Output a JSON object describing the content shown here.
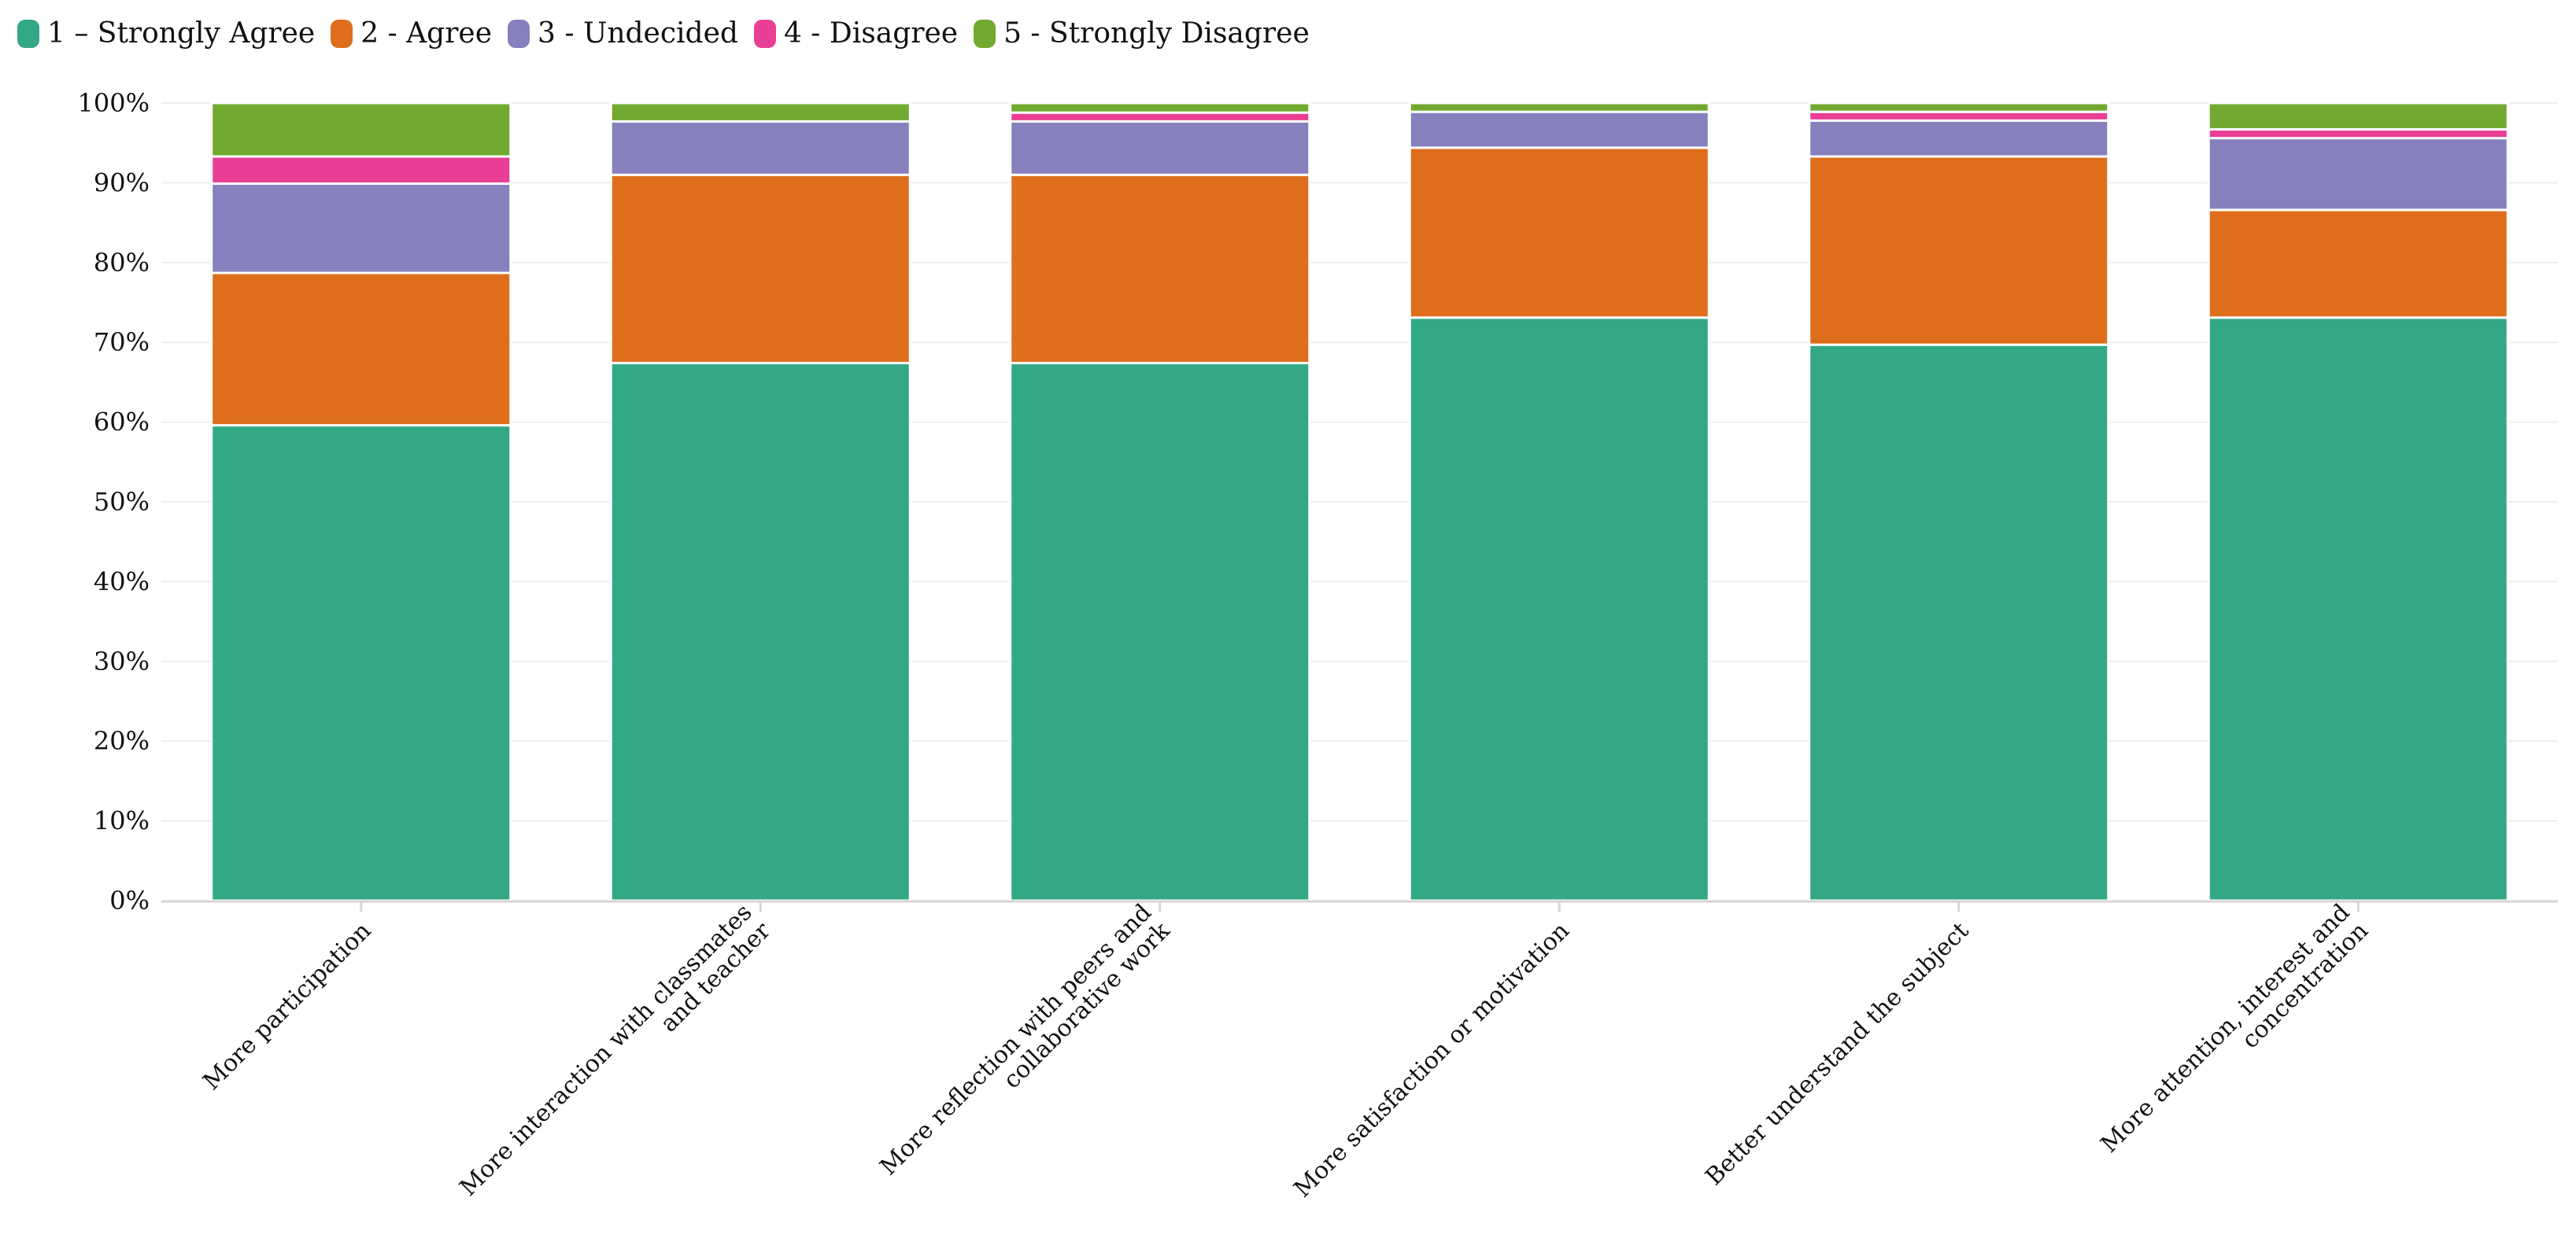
{
  "chart_data": {
    "type": "bar",
    "stacked": true,
    "percent": true,
    "title": "",
    "xlabel": "",
    "ylabel": "",
    "ylim": [
      0,
      100
    ],
    "yticks": [
      "0%",
      "10%",
      "20%",
      "30%",
      "40%",
      "50%",
      "60%",
      "70%",
      "80%",
      "90%",
      "100%"
    ],
    "legend_position": "top-left",
    "categories": [
      [
        "More participation"
      ],
      [
        "More interaction with classmates",
        "and teacher"
      ],
      [
        "More reflection with peers and",
        "collaborative work"
      ],
      [
        "More satisfaction or motivation"
      ],
      [
        "Better understand the subject"
      ],
      [
        "More attention, interest and",
        "concentration"
      ]
    ],
    "series": [
      {
        "name": "1 – Strongly Agree",
        "color": "#33a886",
        "values": [
          59.6,
          67.4,
          67.4,
          73.1,
          69.7,
          73.1
        ]
      },
      {
        "name": "2 - Agree",
        "color": "#de6e1c",
        "values": [
          19.1,
          23.6,
          23.6,
          21.3,
          23.6,
          13.5
        ]
      },
      {
        "name": "3 - Undecided",
        "color": "#8681bc",
        "values": [
          11.2,
          6.7,
          6.7,
          4.5,
          4.5,
          9.0
        ]
      },
      {
        "name": "4 - Disagree",
        "color": "#e83e94",
        "values": [
          3.4,
          0.0,
          1.1,
          0.0,
          1.1,
          1.1
        ]
      },
      {
        "name": "5 - Strongly Disagree",
        "color": "#72a930",
        "values": [
          6.7,
          2.3,
          1.2,
          1.1,
          1.1,
          3.3
        ]
      }
    ]
  }
}
